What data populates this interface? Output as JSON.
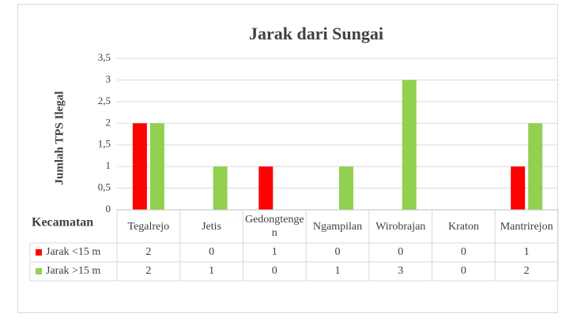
{
  "chart_data": {
    "type": "bar",
    "title": "Jarak dari Sungai",
    "y_label": "Jumlah TPS Ilegal",
    "x_label": "Kecamatan",
    "categories": [
      "Tegalrejo",
      "Jetis",
      "Gedongtengen",
      "Ngampilan",
      "Wirobrajan",
      "Kraton",
      "Mantrirejon"
    ],
    "series": [
      {
        "name": "Jarak <15 m",
        "color": "#ff0000",
        "values": [
          2,
          0,
          1,
          0,
          0,
          0,
          1
        ]
      },
      {
        "name": "Jarak >15 m",
        "color": "#92d050",
        "values": [
          2,
          1,
          0,
          1,
          3,
          0,
          2
        ]
      }
    ],
    "ylim": [
      0,
      3.5
    ],
    "yticks": [
      0,
      {
        "value": 0.5,
        "label": "0,5"
      },
      1,
      {
        "value": 1.5,
        "label": "1,5"
      },
      2,
      {
        "value": 2.5,
        "label": "2,5"
      },
      3,
      {
        "value": 3.5,
        "label": "3,5"
      }
    ],
    "grid": true,
    "data_table": true
  }
}
